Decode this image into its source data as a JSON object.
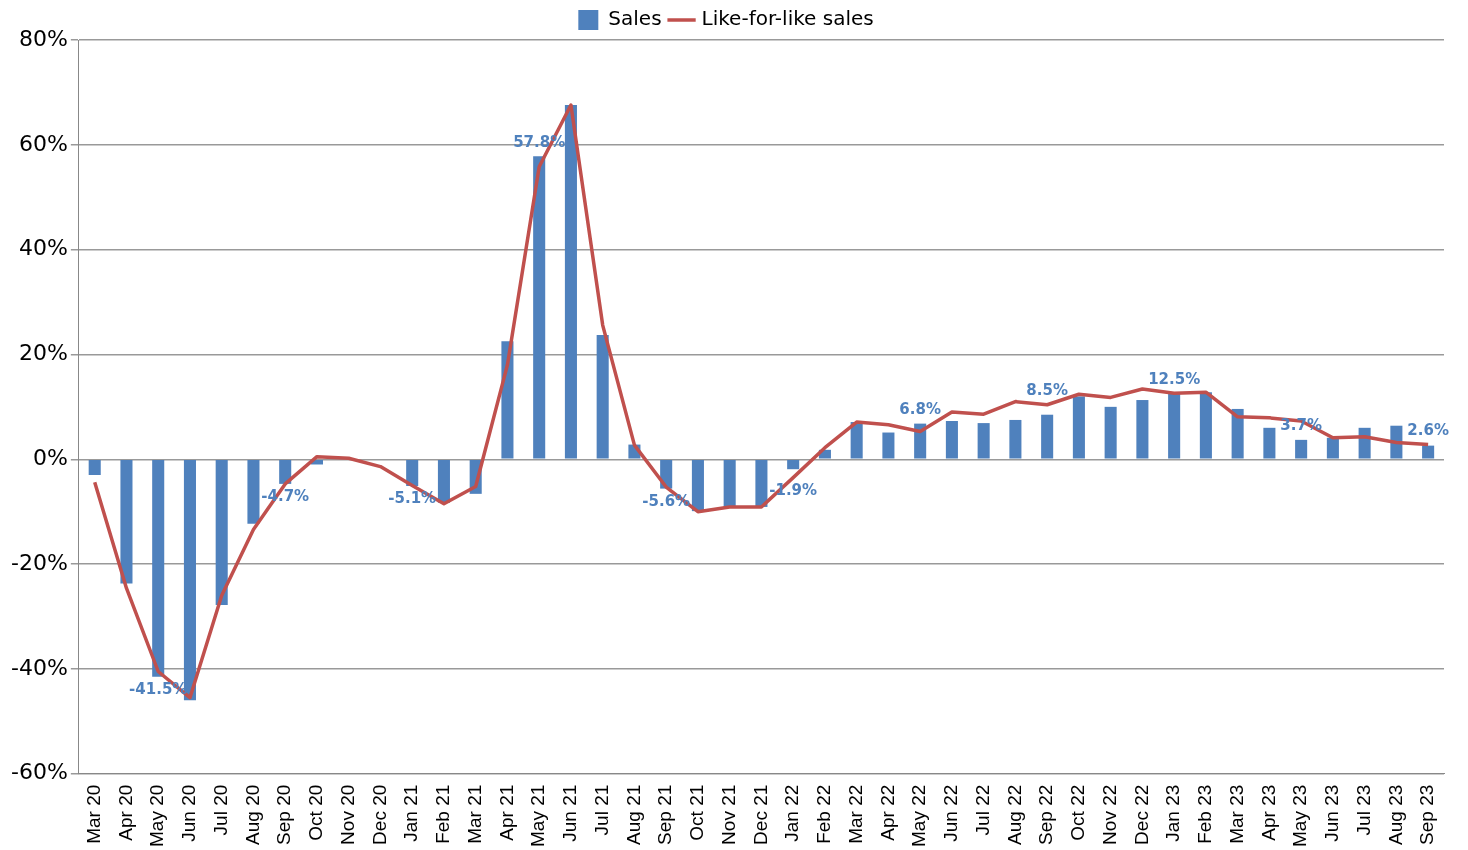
{
  "chart_data": {
    "type": "bar",
    "categories": [
      "Mar 20",
      "Apr 20",
      "May 20",
      "Jun 20",
      "Jul 20",
      "Aug 20",
      "Sep 20",
      "Oct 20",
      "Nov 20",
      "Dec 20",
      "Jan 21",
      "Feb 21",
      "Mar 21",
      "Apr 21",
      "May 21",
      "Jun 21",
      "Jul 21",
      "Aug 21",
      "Sep 21",
      "Oct 21",
      "Nov 21",
      "Dec 21",
      "Jan 22",
      "Feb 22",
      "Mar 22",
      "Apr 22",
      "May 22",
      "Jun 22",
      "Jul 22",
      "Aug 22",
      "Sep 22",
      "Oct 22",
      "Nov 22",
      "Dec 22",
      "Jan 23",
      "Feb 23",
      "Mar 23",
      "Apr 23",
      "May 23",
      "Jun 23",
      "Jul 23",
      "Aug 23",
      "Sep 23"
    ],
    "series": [
      {
        "name": "Sales",
        "type": "bar",
        "color": "#4f81bd",
        "values": [
          -3.0,
          -23.7,
          -41.5,
          -46.0,
          -27.8,
          -12.3,
          -4.7,
          -1.0,
          0,
          null,
          -5.1,
          -8.3,
          -6.6,
          22.5,
          57.8,
          67.6,
          23.7,
          2.8,
          -5.6,
          -9.9,
          -9.1,
          -9.1,
          -1.9,
          1.8,
          7.1,
          5.1,
          6.8,
          7.3,
          6.9,
          7.5,
          8.5,
          12.0,
          10.0,
          11.3,
          12.5,
          12.8,
          9.6,
          6.0,
          3.7,
          4.1,
          6.0,
          6.4,
          2.6
        ],
        "value_labels": [
          null,
          null,
          "-41.5%",
          null,
          null,
          null,
          "-4.7%",
          null,
          null,
          null,
          "-5.1%",
          null,
          null,
          null,
          "57.8%",
          null,
          null,
          null,
          "-5.6%",
          null,
          null,
          null,
          "-1.9%",
          null,
          null,
          null,
          "6.8%",
          null,
          null,
          null,
          "8.5%",
          null,
          null,
          null,
          "12.5%",
          null,
          null,
          null,
          "3.7%",
          null,
          null,
          null,
          "2.6%"
        ]
      },
      {
        "name": "Like-for-like sales",
        "type": "line",
        "color": "#c0504d",
        "values": [
          -4.4,
          -24.6,
          -40.5,
          -45.5,
          -26.0,
          -13.4,
          -4.7,
          0.5,
          0.2,
          -1.4,
          -5.0,
          -8.5,
          -5.2,
          18.0,
          55.8,
          67.6,
          25.6,
          2.7,
          -5.3,
          -10.0,
          -9.1,
          -9.1,
          -3.5,
          2.2,
          7.1,
          6.6,
          5.3,
          9.0,
          8.6,
          11.0,
          10.4,
          12.4,
          11.8,
          13.4,
          12.6,
          12.8,
          8.1,
          7.9,
          7.3,
          4.1,
          4.3,
          3.2,
          2.8
        ]
      }
    ],
    "ylim": [
      -60,
      80
    ],
    "yticks": [
      {
        "value": -60,
        "label": "-60%"
      },
      {
        "value": -40,
        "label": "-40%"
      },
      {
        "value": -20,
        "label": "-20%"
      },
      {
        "value": 0,
        "label": "0%"
      },
      {
        "value": 20,
        "label": "20%"
      },
      {
        "value": 40,
        "label": "40%"
      },
      {
        "value": 60,
        "label": "60%"
      },
      {
        "value": 80,
        "label": "80%"
      }
    ],
    "grid": "y",
    "legend": "top",
    "marker": "none",
    "line_style": "solid"
  }
}
